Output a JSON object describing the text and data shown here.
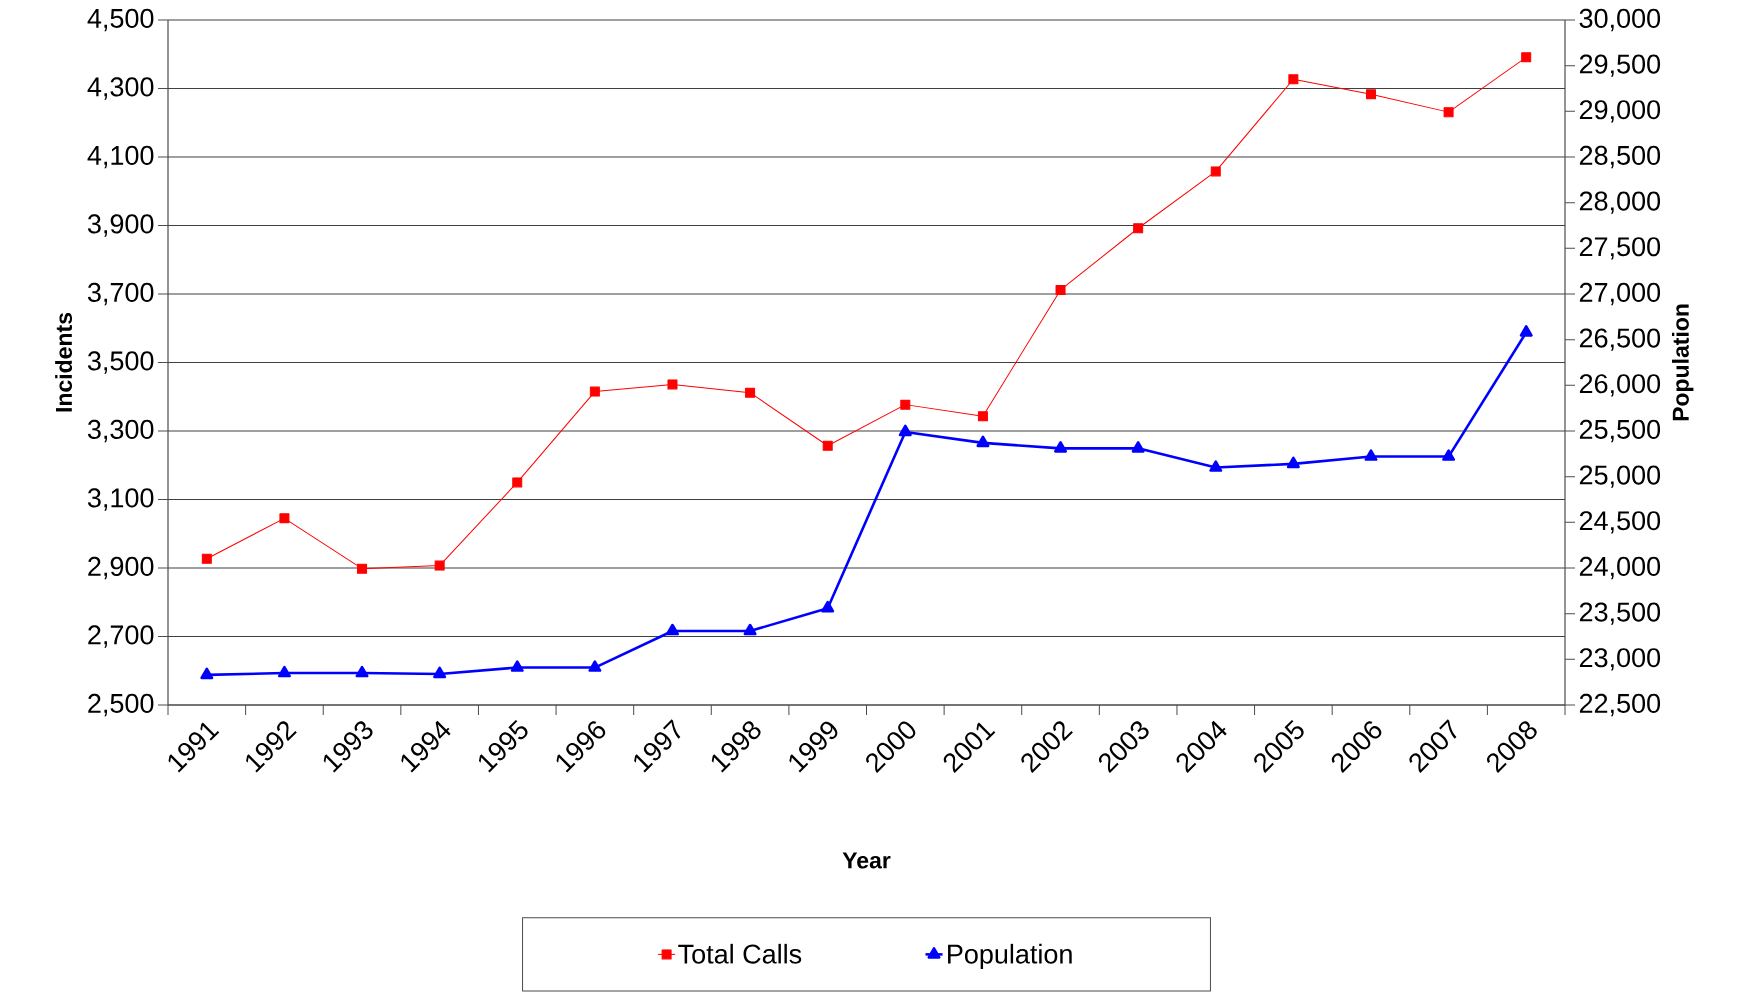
{
  "chart_data": {
    "type": "line",
    "xlabel": "Year",
    "ylabel": "Incidents",
    "y2label": "Population",
    "categories": [
      "1991",
      "1992",
      "1993",
      "1994",
      "1995",
      "1996",
      "1997",
      "1998",
      "1999",
      "2000",
      "2001",
      "2002",
      "2003",
      "2004",
      "2005",
      "2006",
      "2007",
      "2008"
    ],
    "series": [
      {
        "name": "Total Calls",
        "color": "#ff0000",
        "marker": "square",
        "values": [
          2927,
          3045,
          2898,
          2907,
          3150,
          3415,
          3436,
          3412,
          3257,
          3377,
          3343,
          3712,
          3892,
          4058,
          4327,
          4283,
          4231,
          4391
        ]
      },
      {
        "name": "Population",
        "color": "#0000ff",
        "marker": "triangle",
        "axis": "y2",
        "values": [
          22830,
          22850,
          22850,
          22840,
          22910,
          22910,
          23310,
          23310,
          23560,
          25490,
          25370,
          25310,
          25310,
          25100,
          25140,
          25220,
          25220,
          26580
        ]
      }
    ],
    "ylim": [
      2500,
      4500
    ],
    "yticks": [
      {
        "value": 2500,
        "label": "2,500"
      },
      {
        "value": 2700,
        "label": "2,700"
      },
      {
        "value": 2900,
        "label": "2,900"
      },
      {
        "value": 3100,
        "label": "3,100"
      },
      {
        "value": 3300,
        "label": "3,300"
      },
      {
        "value": 3500,
        "label": "3,500"
      },
      {
        "value": 3700,
        "label": "3,700"
      },
      {
        "value": 3900,
        "label": "3,900"
      },
      {
        "value": 4100,
        "label": "4,100"
      },
      {
        "value": 4300,
        "label": "4,300"
      },
      {
        "value": 4500,
        "label": "4,500"
      }
    ],
    "y2lim": [
      22500,
      30000
    ],
    "y2ticks": [
      {
        "value": 22500,
        "label": "22,500"
      },
      {
        "value": 23000,
        "label": "23,000"
      },
      {
        "value": 23500,
        "label": "23,500"
      },
      {
        "value": 24000,
        "label": "24,000"
      },
      {
        "value": 24500,
        "label": "24,500"
      },
      {
        "value": 25000,
        "label": "25,000"
      },
      {
        "value": 25500,
        "label": "25,500"
      },
      {
        "value": 26000,
        "label": "26,000"
      },
      {
        "value": 26500,
        "label": "26,500"
      },
      {
        "value": 27000,
        "label": "27,000"
      },
      {
        "value": 27500,
        "label": "27,500"
      },
      {
        "value": 28000,
        "label": "28,000"
      },
      {
        "value": 28500,
        "label": "28,500"
      },
      {
        "value": 29000,
        "label": "29,000"
      },
      {
        "value": 29500,
        "label": "29,500"
      },
      {
        "value": 30000,
        "label": "30,000"
      }
    ],
    "grid": "y",
    "legend": "bottom"
  }
}
